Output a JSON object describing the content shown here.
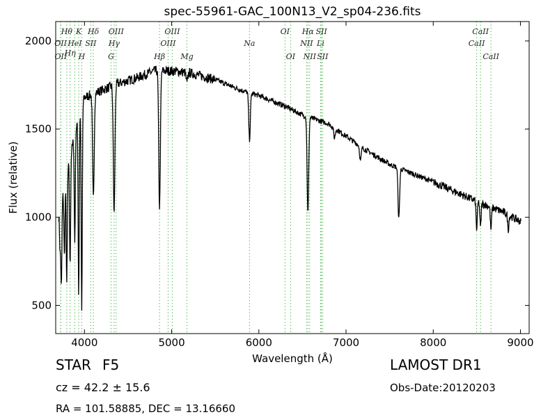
{
  "info": {
    "object_class": "STAR",
    "subclass": "F5",
    "cz": "cz = 42.2  ± 15.6",
    "radec": "RA = 101.58885, DEC = 13.16660",
    "survey": "LAMOST DR1",
    "obs_date": "Obs-Date:20120203"
  },
  "colors": {
    "spectrum": "#000000",
    "line_marker": "#55bb55",
    "frame": "#000000"
  },
  "chart_data": {
    "type": "line",
    "title": "spec-55961-GAC_100N13_V2_sp04-236.fits",
    "xlabel": "Wavelength (Å)",
    "ylabel": "Flux (relative)",
    "xlim": [
      3670,
      9100
    ],
    "ylim": [
      340,
      2110
    ],
    "xticks": [
      4000,
      5000,
      6000,
      7000,
      8000,
      9000
    ],
    "yticks": [
      500,
      1000,
      1500,
      2000
    ],
    "grid": false,
    "continuum": [
      [
        3700,
        1000
      ],
      [
        3800,
        1250
      ],
      [
        3900,
        1500
      ],
      [
        4000,
        1680
      ],
      [
        4200,
        1720
      ],
      [
        4400,
        1760
      ],
      [
        4600,
        1790
      ],
      [
        4800,
        1830
      ],
      [
        5000,
        1830
      ],
      [
        5200,
        1820
      ],
      [
        5500,
        1780
      ],
      [
        5800,
        1720
      ],
      [
        6000,
        1690
      ],
      [
        6300,
        1630
      ],
      [
        6500,
        1580
      ],
      [
        6800,
        1530
      ],
      [
        7000,
        1460
      ],
      [
        7200,
        1390
      ],
      [
        7500,
        1300
      ],
      [
        8000,
        1200
      ],
      [
        8500,
        1090
      ],
      [
        8800,
        1030
      ],
      [
        9000,
        975
      ]
    ],
    "absorption_features": [
      {
        "wavelength": 3720,
        "flux_min": 820
      },
      {
        "wavelength": 3735,
        "flux_min": 610
      },
      {
        "wavelength": 3770,
        "flux_min": 780
      },
      {
        "wavelength": 3797,
        "flux_min": 630
      },
      {
        "wavelength": 3835,
        "flux_min": 720
      },
      {
        "wavelength": 3889,
        "flux_min": 860
      },
      {
        "wavelength": 3934,
        "flux_min": 560
      },
      {
        "wavelength": 3969,
        "flux_min": 450
      },
      {
        "wavelength": 4102,
        "flux_min": 1100
      },
      {
        "wavelength": 4340,
        "flux_min": 1020
      },
      {
        "wavelength": 4861,
        "flux_min": 1060
      },
      {
        "wavelength": 5175,
        "flux_min": 1760
      },
      {
        "wavelength": 5893,
        "flux_min": 1440
      },
      {
        "wavelength": 6563,
        "flux_min": 1020
      },
      {
        "wavelength": 6867,
        "flux_min": 1450
      },
      {
        "wavelength": 7165,
        "flux_min": 1320
      },
      {
        "wavelength": 7605,
        "flux_min": 990
      },
      {
        "wavelength": 8498,
        "flux_min": 930
      },
      {
        "wavelength": 8542,
        "flux_min": 940
      },
      {
        "wavelength": 8662,
        "flux_min": 930
      },
      {
        "wavelength": 8860,
        "flux_min": 930
      }
    ],
    "line_markers": [
      {
        "label": "Hθ",
        "wavelength": 3797,
        "row": 0
      },
      {
        "label": "OII",
        "wavelength": 3727,
        "row": 1
      },
      {
        "label": "OII",
        "wavelength": 3729,
        "row": 2
      },
      {
        "label": "Hη",
        "wavelength": 3835,
        "row": 1.5
      },
      {
        "label": "HeI",
        "wavelength": 3889,
        "row": 1
      },
      {
        "label": "K",
        "wavelength": 3934,
        "row": 0
      },
      {
        "label": "SII",
        "wavelength": 4072,
        "row": 1
      },
      {
        "label": "H",
        "wavelength": 3969,
        "row": 2
      },
      {
        "label": "Hδ",
        "wavelength": 4102,
        "row": 0
      },
      {
        "label": "OIII",
        "wavelength": 4363,
        "row": 0
      },
      {
        "label": "Hγ",
        "wavelength": 4340,
        "row": 1
      },
      {
        "label": "G",
        "wavelength": 4305,
        "row": 2
      },
      {
        "label": "OIII",
        "wavelength": 5007,
        "row": 0
      },
      {
        "label": "OIII",
        "wavelength": 4959,
        "row": 1
      },
      {
        "label": "Hβ",
        "wavelength": 4861,
        "row": 2
      },
      {
        "label": "Mg",
        "wavelength": 5175,
        "row": 2
      },
      {
        "label": "Na",
        "wavelength": 5893,
        "row": 1
      },
      {
        "label": "OI",
        "wavelength": 6300,
        "row": 0
      },
      {
        "label": "OI",
        "wavelength": 6364,
        "row": 2
      },
      {
        "label": "Hα",
        "wavelength": 6563,
        "row": 0
      },
      {
        "label": "NII",
        "wavelength": 6548,
        "row": 1
      },
      {
        "label": "NII",
        "wavelength": 6583,
        "row": 2
      },
      {
        "label": "SII",
        "wavelength": 6717,
        "row": 0
      },
      {
        "label": "Li",
        "wavelength": 6708,
        "row": 1
      },
      {
        "label": "SII",
        "wavelength": 6731,
        "row": 2
      },
      {
        "label": "CaII",
        "wavelength": 8542,
        "row": 0
      },
      {
        "label": "CaII",
        "wavelength": 8498,
        "row": 1
      },
      {
        "label": "CaII",
        "wavelength": 8662,
        "row": 2
      }
    ]
  }
}
